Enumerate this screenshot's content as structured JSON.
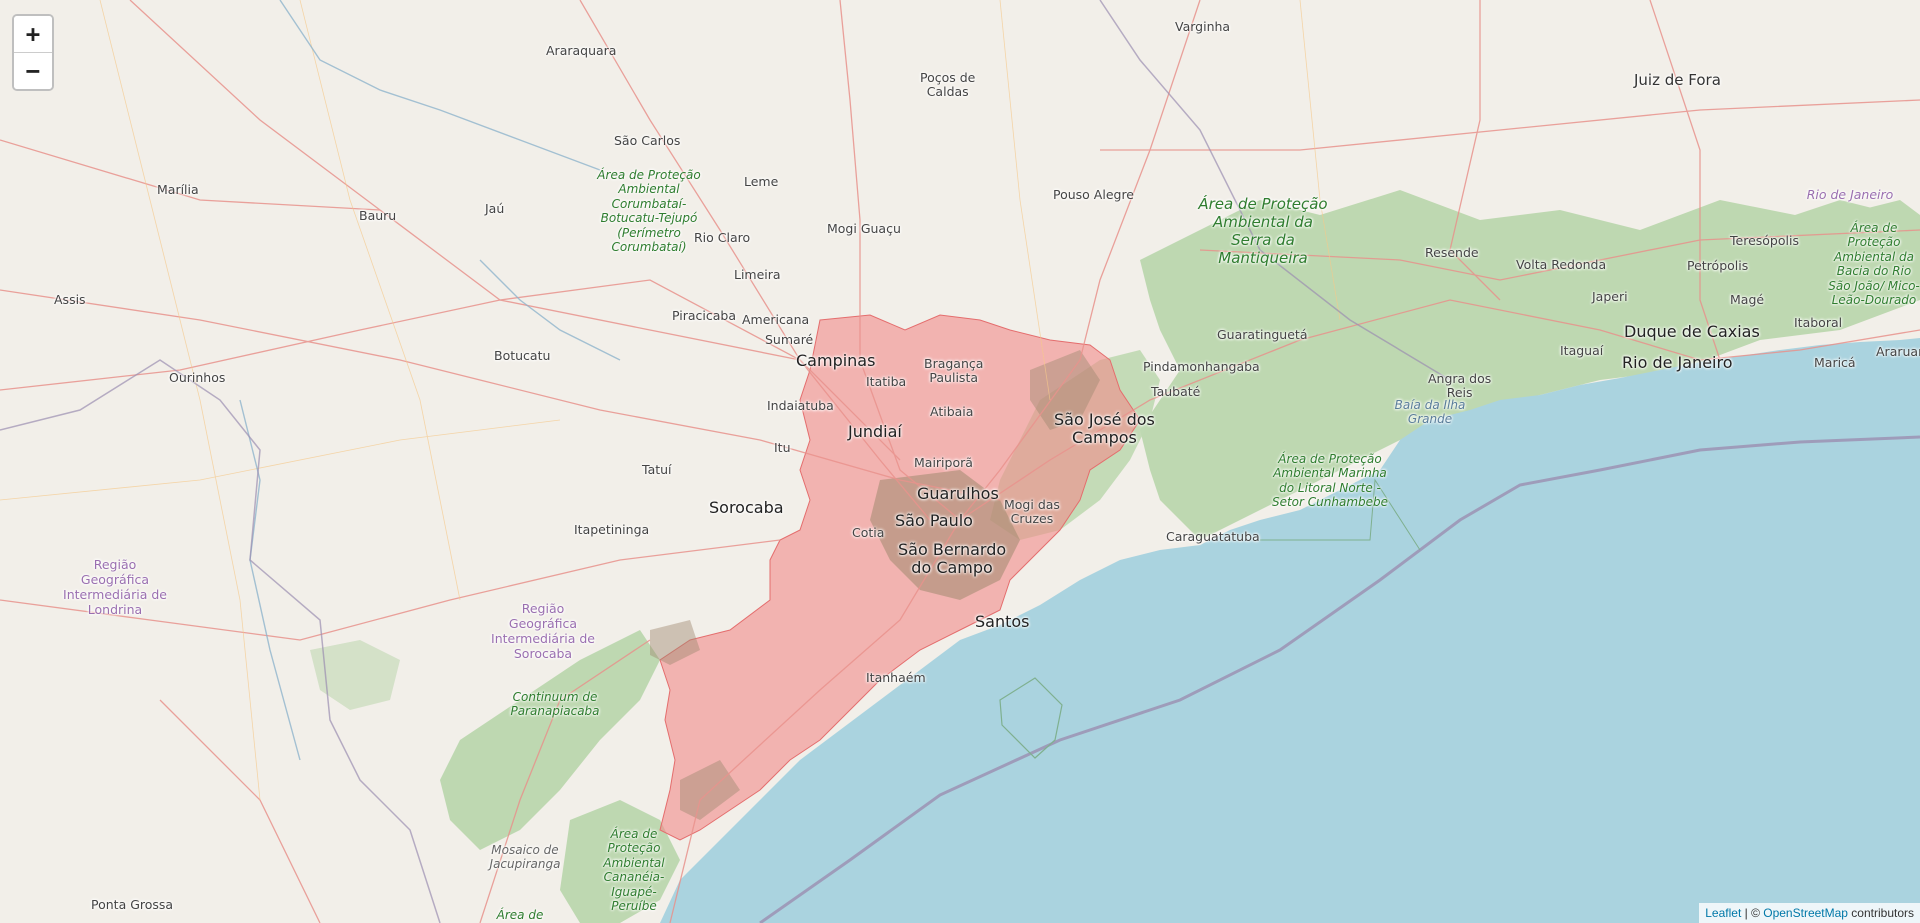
{
  "zoom": {
    "in_label": "+",
    "out_label": "−"
  },
  "attribution": {
    "leaflet": "Leaflet",
    "separator": " | © ",
    "osm": "OpenStreetMap",
    "suffix": " contributors"
  },
  "cities": {
    "varginha": "Varginha",
    "juiz_de_fora": "Juiz de Fora",
    "araraquara": "Araraquara",
    "pocos_de_caldas": "Poços de\nCaldas",
    "sao_carlos": "São Carlos",
    "marilia": "Marília",
    "leme": "Leme",
    "bauru": "Bauru",
    "jau": "Jaú",
    "pouso_alegre": "Pouso Alegre",
    "mogi_guacu": "Mogi Guaçu",
    "rio_claro": "Rio Claro",
    "limeira": "Limeira",
    "assis": "Assis",
    "resende": "Resende",
    "volta_redonda": "Volta Redonda",
    "teresopolis": "Teresópolis",
    "petropolis": "Petrópolis",
    "japeri": "Japeri",
    "mage": "Magé",
    "itaboral": "Itaboral",
    "duque_de_caxias": "Duque de Caxias",
    "rio_de_janeiro": "Rio de Janeiro",
    "marica": "Maricá",
    "itaguai": "Itaguaí",
    "araruama": "Araruama",
    "piracicaba": "Piracicaba",
    "americana": "Americana",
    "sumare": "Sumaré",
    "campinas": "Campinas",
    "guaratingueta": "Guaratinguetá",
    "pindamonhangaba": "Pindamonhangaba",
    "botucatu": "Botucatu",
    "ourinhos": "Ourinhos",
    "braganca_paulista": "Bragança\nPaulista",
    "itatiba": "Itatiba",
    "indaiatuba": "Indaiatuba",
    "taubate": "Taubaté",
    "angra_dos_reis": "Angra dos\nReis",
    "atibaia": "Atibaia",
    "jundiai": "Jundiaí",
    "sao_jose_dos_campos": "São José dos\nCampos",
    "itu": "Itu",
    "mairipora": "Mairiporã",
    "tatui": "Tatuí",
    "guarulhos": "Guarulhos",
    "sorocaba": "Sorocaba",
    "mogi_das_cruzes": "Mogi das\nCruzes",
    "itapetininga": "Itapetininga",
    "sao_paulo": "São Paulo",
    "cotia": "Cotia",
    "caraguatatuba": "Caraguatatuba",
    "sao_bernardo": "São Bernardo\ndo Campo",
    "santos": "Santos",
    "itanhaem": "Itanhaém",
    "ponta_grossa": "Ponta Grossa"
  },
  "parks": {
    "corumbatai": "Área de Proteção Ambiental Corumbataí-Botucatu-Tejupó (Perímetro Corumbataí)",
    "mantiqueira": "Área de Proteção Ambiental da Serra da Mantiqueira",
    "bacia_sao_joao": "Área de Proteção Ambiental da Bacia do Rio São João/ Mico-Leão-Dourado",
    "litoral_norte": "Área de Proteção Ambiental Marinha do Litoral Norte - Setor Cunhambebe",
    "paranapiacaba": "Continuum de Paranapiacaba",
    "jacupiranga": "Mosaico de Jacupiranga",
    "cananeia": "Área de Proteção Ambiental Cananéia-Iguapé-Peruíbe",
    "bottom": "Área de"
  },
  "regions": {
    "londrina": "Região Geográfica Intermediária de Londrina",
    "sorocaba": "Região Geográfica Intermediária de Sorocaba",
    "rio_state": "Rio de Janeiro"
  },
  "water": {
    "ilha_grande": "Baía da Ilha Grande"
  },
  "colors": {
    "land": "#f2efe9",
    "sea": "#aad3df",
    "highlight": "#f28b8b",
    "forest": "#add19e",
    "road": "#e8928c"
  }
}
